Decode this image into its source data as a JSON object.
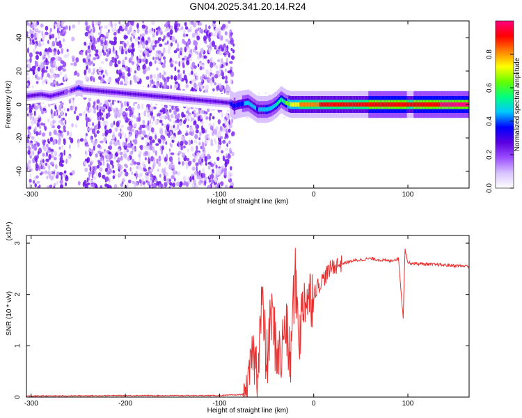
{
  "title": "GN04.2025.341.20.14.R24",
  "chart_data": [
    {
      "type": "heatmap",
      "xlabel": "Height of straight line (km)",
      "ylabel": "Frequency (Hz)",
      "xlim": [
        -305,
        165
      ],
      "ylim": [
        -50,
        50
      ],
      "x_ticks": [
        -300,
        -200,
        -100,
        0,
        100
      ],
      "y_ticks": [
        -40,
        -20,
        0,
        20,
        40
      ],
      "colorbar": {
        "label": "Normalized spectral amplitude",
        "range": [
          0,
          1
        ],
        "ticks": [
          "0.0",
          "0.2",
          "0.4",
          "0.6",
          "0.8"
        ],
        "tick_values": [
          0,
          0.2,
          0.4,
          0.6,
          0.8
        ],
        "colors": [
          "#ffffff",
          "#d9c2ff",
          "#9b4dff",
          "#5a00e0",
          "#0000ff",
          "#00c8ff",
          "#00ff80",
          "#66ff00",
          "#ffff00",
          "#ff8000",
          "#ff0000",
          "#ff0080"
        ]
      },
      "signal_track": {
        "x": [
          -305,
          -290,
          -280,
          -260,
          -250,
          -245,
          -90,
          -85,
          -80,
          -70,
          -60,
          -50,
          -45,
          -40,
          -35,
          -30,
          -25,
          -20,
          -10,
          0,
          20,
          50,
          90,
          100,
          130,
          165
        ],
        "freq_hz": [
          5,
          6,
          5,
          8,
          10,
          9,
          1,
          -1,
          0,
          1,
          -3,
          -3,
          -2,
          0,
          3,
          1,
          0,
          0,
          0,
          0,
          0,
          0,
          0,
          0,
          0,
          0
        ],
        "amplitude": [
          0.3,
          0.25,
          0.3,
          0.2,
          0.35,
          0.3,
          0.3,
          0.4,
          0.35,
          0.45,
          0.4,
          0.5,
          0.45,
          0.5,
          0.5,
          0.6,
          0.7,
          0.75,
          0.8,
          0.85,
          0.9,
          0.9,
          0.95,
          0.9,
          0.95,
          1.0
        ]
      }
    },
    {
      "type": "line",
      "xlabel": "Height of straight line (km)",
      "ylabel": "SNR (10 * v/v)",
      "y_multiplier": "(x10⁴)",
      "xlim": [
        -305,
        165
      ],
      "ylim": [
        0,
        3.15
      ],
      "x_ticks": [
        -300,
        -200,
        -100,
        0,
        100
      ],
      "y_ticks": [
        0,
        1,
        2,
        3
      ],
      "color": "#e83030",
      "series": [
        {
          "x": [
            -305,
            -200,
            -100,
            -75,
            -70,
            -65,
            -60,
            -55,
            -50,
            -45,
            -40,
            -35,
            -30,
            -25,
            -20,
            -15,
            -10,
            -5,
            0,
            10,
            20,
            30,
            40,
            60,
            80,
            90,
            95,
            97,
            100,
            110,
            130,
            165
          ],
          "y": [
            0.02,
            0.03,
            0.03,
            0.05,
            0.2,
            0.9,
            0.5,
            1.9,
            0.6,
            1.6,
            1.0,
            0.7,
            1.5,
            0.6,
            2.4,
            1.2,
            2.0,
            1.9,
            2.05,
            2.3,
            2.55,
            2.6,
            2.65,
            2.7,
            2.65,
            2.7,
            1.55,
            2.9,
            2.62,
            2.6,
            2.58,
            2.55
          ]
        }
      ]
    }
  ]
}
